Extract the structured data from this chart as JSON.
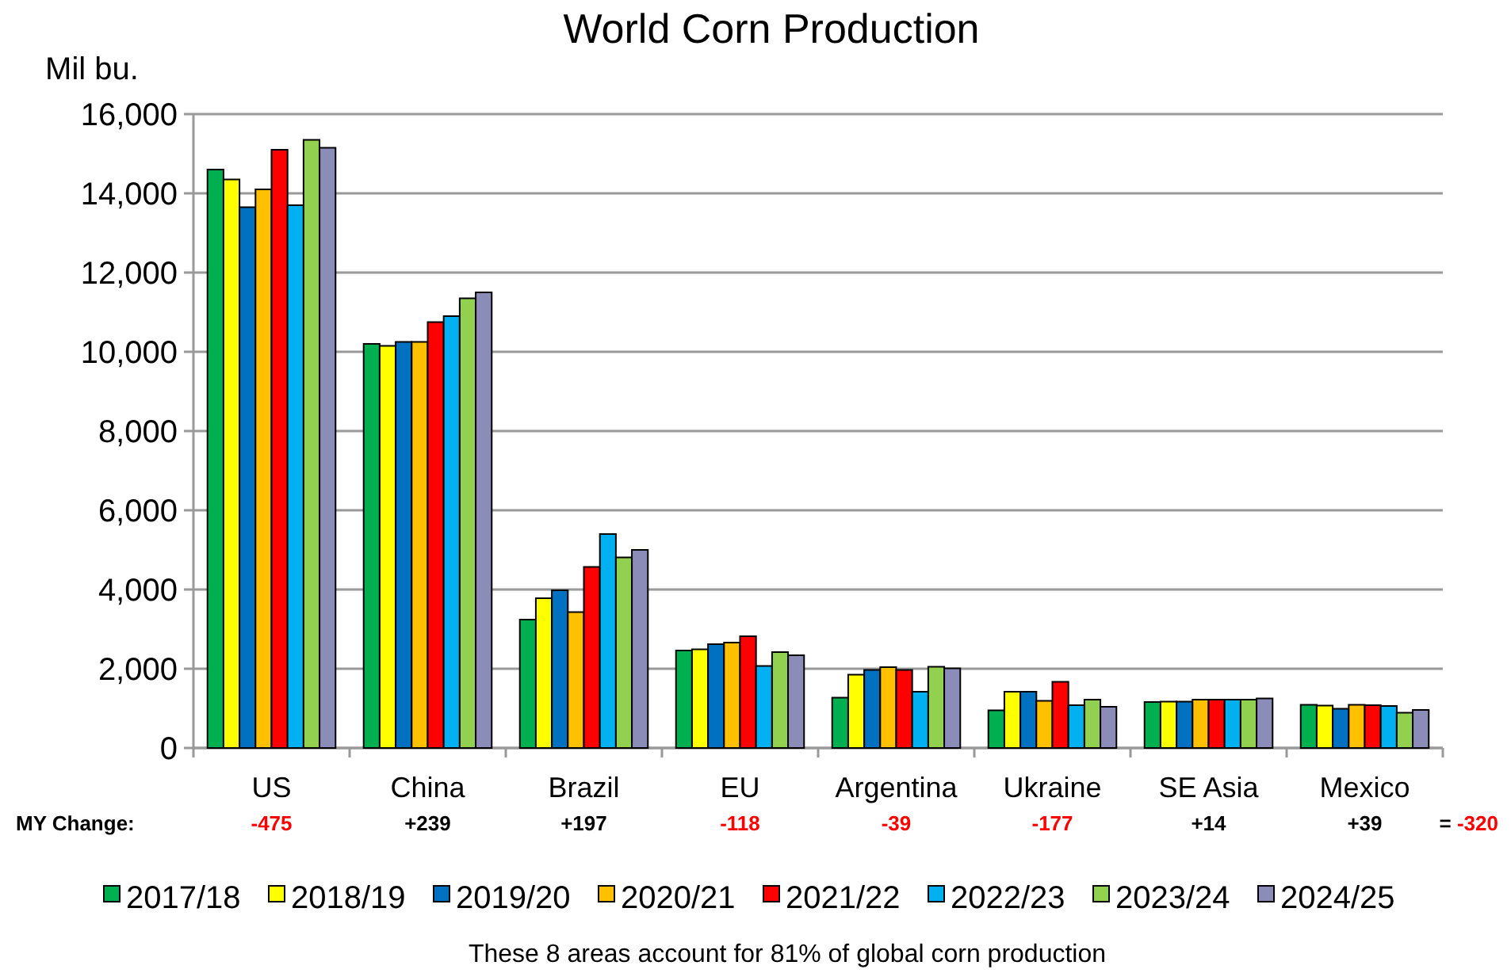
{
  "chart_data": {
    "type": "bar",
    "title": "World Corn Production",
    "ylabel": "Mil bu.",
    "categories": [
      "US",
      "China",
      "Brazil",
      "EU",
      "Argentina",
      "Ukraine",
      "SE Asia",
      "Mexico"
    ],
    "series": [
      {
        "name": "2017/18",
        "color": "#00b050",
        "values": [
          14600,
          10200,
          3240,
          2460,
          1270,
          950,
          1160,
          1090
        ]
      },
      {
        "name": "2018/19",
        "color": "#ffff00",
        "values": [
          14350,
          10150,
          3780,
          2490,
          1850,
          1420,
          1170,
          1070
        ]
      },
      {
        "name": "2019/20",
        "color": "#0070c0",
        "values": [
          13650,
          10250,
          3980,
          2620,
          1970,
          1420,
          1170,
          990
        ]
      },
      {
        "name": "2020/21",
        "color": "#ffc000",
        "values": [
          14100,
          10250,
          3430,
          2660,
          2040,
          1190,
          1220,
          1090
        ]
      },
      {
        "name": "2021/22",
        "color": "#ff0000",
        "values": [
          15100,
          10750,
          4570,
          2820,
          1970,
          1670,
          1220,
          1080
        ]
      },
      {
        "name": "2022/23",
        "color": "#00b0f0",
        "values": [
          13700,
          10900,
          5400,
          2070,
          1420,
          1080,
          1220,
          1060
        ]
      },
      {
        "name": "2023/24",
        "color": "#92d050",
        "values": [
          15350,
          11350,
          4810,
          2420,
          2050,
          1220,
          1220,
          890
        ]
      },
      {
        "name": "2024/25",
        "color": "#8b8db8",
        "values": [
          15150,
          11500,
          5000,
          2340,
          2010,
          1040,
          1250,
          960
        ]
      }
    ],
    "ylim": [
      0,
      16000
    ],
    "yticks": [
      {
        "value": 0,
        "label": "0"
      },
      {
        "value": 2000,
        "label": "2,000"
      },
      {
        "value": 4000,
        "label": "4,000"
      },
      {
        "value": 6000,
        "label": "6,000"
      },
      {
        "value": 8000,
        "label": "8,000"
      },
      {
        "value": 10000,
        "label": "10,000"
      },
      {
        "value": 12000,
        "label": "12,000"
      },
      {
        "value": 14000,
        "label": "14,000"
      },
      {
        "value": 16000,
        "label": "16,000"
      }
    ],
    "grid": "y",
    "legend": "bottom",
    "annotations": [
      "MY Change:",
      "-475",
      "+239",
      "+197",
      "-118",
      "-39",
      "-177",
      "+14",
      "+39",
      "= -320",
      "These 8 areas account for 81% of global corn production"
    ]
  }
}
